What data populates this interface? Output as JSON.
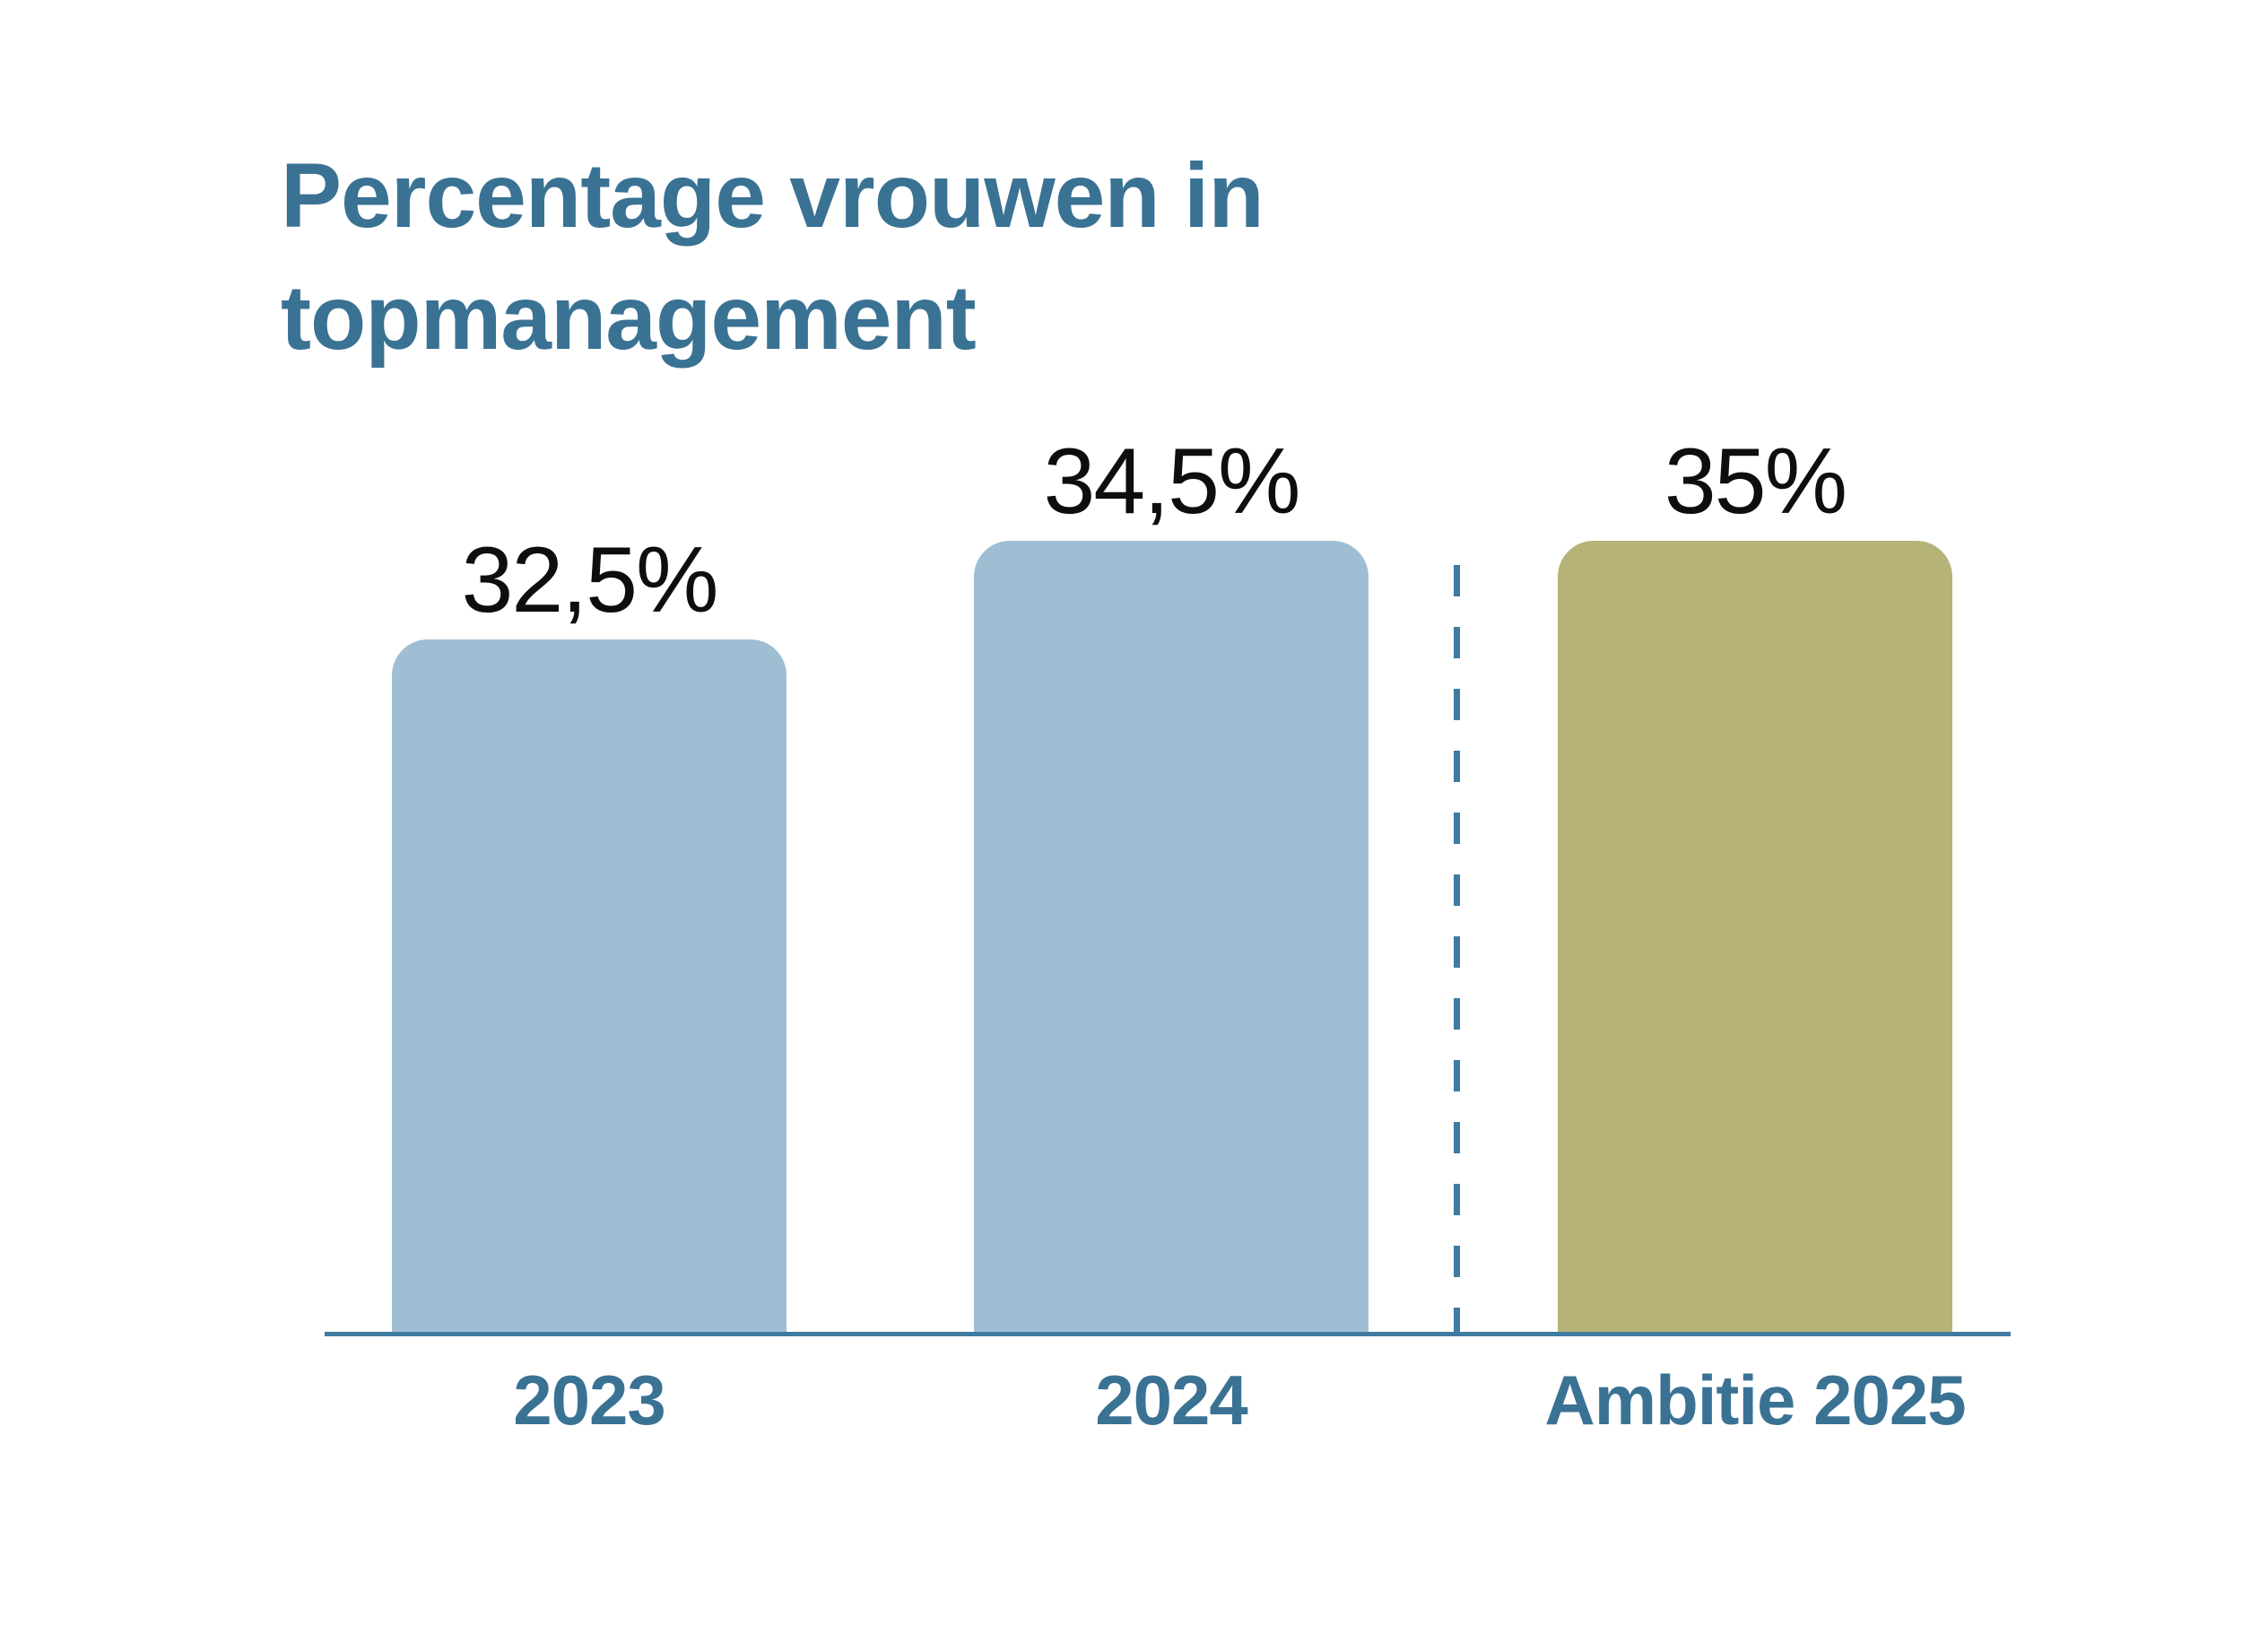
{
  "title": {
    "line1": "Percentage vrouwen in",
    "line2": "topmanagement",
    "full": "Percentage vrouwen in topmanagement"
  },
  "chart_data": {
    "type": "bar",
    "title": "Percentage vrouwen in topmanagement",
    "categories": [
      "2023",
      "2024",
      "Ambitie 2025"
    ],
    "values": [
      32.5,
      34.5,
      35
    ],
    "value_labels": [
      "32,5%",
      "34,5%",
      "35%"
    ],
    "series": [
      {
        "name": "Percentage vrouwen in topmanagement",
        "values": [
          32.5,
          34.5,
          35
        ]
      }
    ],
    "xlabel": "",
    "ylabel": "",
    "y_axis_shown": false,
    "grid": false,
    "legend": false,
    "bar_colors": [
      "#9FBED4",
      "#9FBED4",
      "#B5B377"
    ],
    "annotations": [
      "vertical dashed separator between 2024 and Ambitie 2025 marking the target bar"
    ]
  },
  "colors": {
    "background": "#FFFFFF",
    "title_text": "#3A7294",
    "category_label_text": "#3A7294",
    "value_label_text": "#0E0E0E",
    "bar_actual": "#9FBED4",
    "bar_ambition": "#B5B377",
    "axis_line": "#3F7AA0",
    "dashed_separator": "#3F7AA0"
  }
}
